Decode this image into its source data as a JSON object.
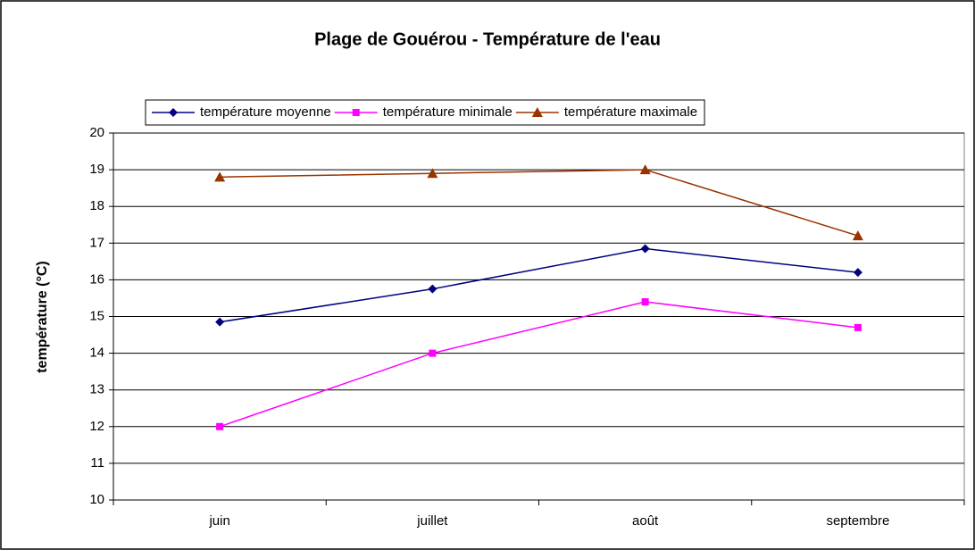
{
  "chart_data": {
    "type": "line",
    "title": "Plage de Gouérou - Température de l'eau",
    "y_label": "température (°C)",
    "categories": [
      "juin",
      "juillet",
      "août",
      "septembre"
    ],
    "series": [
      {
        "name": "température moyenne",
        "color": "#000080",
        "marker": "diamond",
        "values": [
          14.85,
          15.75,
          16.85,
          16.2
        ]
      },
      {
        "name": "température minimale",
        "color": "#ff00ff",
        "marker": "square",
        "values": [
          12,
          14,
          15.4,
          14.7
        ]
      },
      {
        "name": "température maximale",
        "color": "#993300",
        "marker": "triangle",
        "values": [
          18.8,
          18.9,
          19,
          17.2
        ]
      }
    ],
    "ylim": [
      10,
      20
    ],
    "yticks": [
      10,
      11,
      12,
      13,
      14,
      15,
      16,
      17,
      18,
      19,
      20
    ],
    "grid": true,
    "legend": "top"
  }
}
